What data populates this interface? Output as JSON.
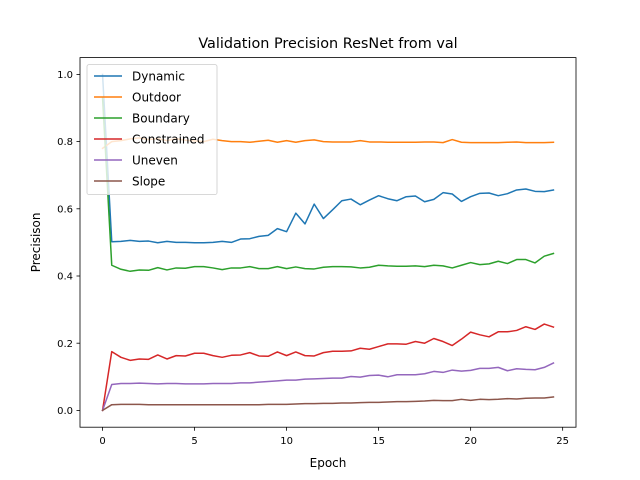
{
  "chart_data": {
    "type": "line",
    "title": "Validation Precision ResNet from val",
    "xlabel": "Epoch",
    "ylabel": "Precisison",
    "xlim": [
      -1.225,
      25.725
    ],
    "ylim": [
      -0.05,
      1.05
    ],
    "xticks": [
      0,
      5,
      10,
      15,
      20,
      25
    ],
    "yticks": [
      0.0,
      0.2,
      0.4,
      0.6,
      0.8,
      1.0
    ],
    "xtick_labels": [
      "0",
      "5",
      "10",
      "15",
      "20",
      "25"
    ],
    "ytick_labels": [
      "0.0",
      "0.2",
      "0.4",
      "0.6",
      "0.8",
      "1.0"
    ],
    "legend_position": "top-left",
    "grid": false,
    "x": [
      0,
      0.5,
      1,
      1.5,
      2,
      2.5,
      3,
      3.5,
      4,
      4.5,
      5,
      5.5,
      6,
      6.5,
      7,
      7.5,
      8,
      8.5,
      9,
      9.5,
      10,
      10.5,
      11,
      11.5,
      12,
      12.5,
      13,
      13.5,
      14,
      14.5,
      15,
      15.5,
      16,
      16.5,
      17,
      17.5,
      18,
      18.5,
      19,
      19.5,
      20,
      20.5,
      21,
      21.5,
      22,
      22.5,
      23,
      23.5,
      24,
      24.5
    ],
    "series": [
      {
        "name": "Dynamic",
        "color": "#1f77b4",
        "values": [
          1.0,
          0.502,
          0.503,
          0.506,
          0.503,
          0.504,
          0.499,
          0.503,
          0.5,
          0.5,
          0.499,
          0.499,
          0.5,
          0.503,
          0.5,
          0.51,
          0.511,
          0.518,
          0.521,
          0.541,
          0.532,
          0.587,
          0.555,
          0.614,
          0.571,
          0.597,
          0.624,
          0.629,
          0.612,
          0.626,
          0.639,
          0.63,
          0.624,
          0.636,
          0.638,
          0.621,
          0.628,
          0.648,
          0.644,
          0.622,
          0.636,
          0.646,
          0.647,
          0.639,
          0.645,
          0.656,
          0.659,
          0.652,
          0.651,
          0.656
        ]
      },
      {
        "name": "Outdoor",
        "color": "#ff7f0e",
        "values": [
          0.78,
          0.8,
          0.803,
          0.808,
          0.811,
          0.806,
          0.809,
          0.803,
          0.809,
          0.804,
          0.802,
          0.8,
          0.807,
          0.803,
          0.8,
          0.8,
          0.798,
          0.801,
          0.804,
          0.798,
          0.803,
          0.798,
          0.803,
          0.805,
          0.8,
          0.799,
          0.799,
          0.799,
          0.803,
          0.799,
          0.799,
          0.798,
          0.798,
          0.798,
          0.798,
          0.799,
          0.799,
          0.797,
          0.806,
          0.798,
          0.797,
          0.797,
          0.797,
          0.797,
          0.798,
          0.799,
          0.797,
          0.797,
          0.797,
          0.798
        ]
      },
      {
        "name": "Boundary",
        "color": "#2ca02c",
        "values": [
          0.93,
          0.432,
          0.42,
          0.414,
          0.418,
          0.417,
          0.425,
          0.418,
          0.424,
          0.423,
          0.428,
          0.428,
          0.424,
          0.419,
          0.424,
          0.424,
          0.428,
          0.422,
          0.422,
          0.428,
          0.422,
          0.427,
          0.422,
          0.421,
          0.426,
          0.428,
          0.428,
          0.427,
          0.424,
          0.426,
          0.432,
          0.43,
          0.429,
          0.429,
          0.43,
          0.428,
          0.432,
          0.43,
          0.424,
          0.432,
          0.44,
          0.434,
          0.436,
          0.444,
          0.437,
          0.449,
          0.449,
          0.439,
          0.459,
          0.467
        ]
      },
      {
        "name": "Constrained",
        "color": "#d62728",
        "values": [
          0.0,
          0.175,
          0.158,
          0.149,
          0.153,
          0.152,
          0.165,
          0.153,
          0.163,
          0.162,
          0.17,
          0.17,
          0.163,
          0.158,
          0.164,
          0.165,
          0.172,
          0.162,
          0.161,
          0.174,
          0.163,
          0.174,
          0.163,
          0.162,
          0.172,
          0.176,
          0.176,
          0.177,
          0.185,
          0.182,
          0.19,
          0.198,
          0.198,
          0.197,
          0.205,
          0.2,
          0.214,
          0.205,
          0.193,
          0.212,
          0.233,
          0.225,
          0.219,
          0.234,
          0.234,
          0.238,
          0.249,
          0.241,
          0.257,
          0.248
        ]
      },
      {
        "name": "Uneven",
        "color": "#9467bd",
        "values": [
          0.0,
          0.077,
          0.08,
          0.08,
          0.081,
          0.08,
          0.079,
          0.08,
          0.08,
          0.079,
          0.079,
          0.079,
          0.08,
          0.08,
          0.08,
          0.082,
          0.082,
          0.084,
          0.086,
          0.088,
          0.09,
          0.09,
          0.093,
          0.094,
          0.095,
          0.096,
          0.096,
          0.101,
          0.099,
          0.104,
          0.105,
          0.1,
          0.106,
          0.106,
          0.106,
          0.109,
          0.116,
          0.113,
          0.12,
          0.117,
          0.119,
          0.125,
          0.125,
          0.128,
          0.118,
          0.124,
          0.122,
          0.121,
          0.128,
          0.141
        ]
      },
      {
        "name": "Slope",
        "color": "#8c564b",
        "values": [
          0.0,
          0.017,
          0.018,
          0.018,
          0.018,
          0.017,
          0.017,
          0.017,
          0.017,
          0.017,
          0.017,
          0.017,
          0.017,
          0.017,
          0.017,
          0.017,
          0.017,
          0.017,
          0.018,
          0.018,
          0.018,
          0.019,
          0.02,
          0.02,
          0.021,
          0.021,
          0.022,
          0.022,
          0.023,
          0.024,
          0.024,
          0.025,
          0.026,
          0.026,
          0.027,
          0.028,
          0.03,
          0.029,
          0.029,
          0.033,
          0.03,
          0.033,
          0.032,
          0.033,
          0.035,
          0.034,
          0.036,
          0.037,
          0.037,
          0.04
        ]
      }
    ]
  }
}
